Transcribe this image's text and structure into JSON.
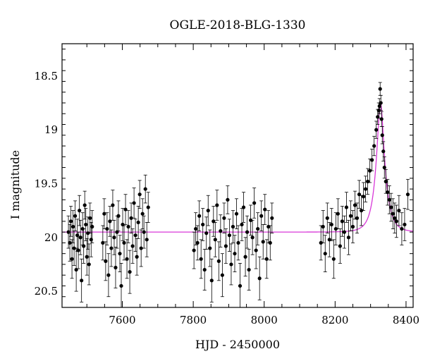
{
  "chart_data": {
    "type": "scatter",
    "title": "OGLE-2018-BLG-1330",
    "xlabel": "HJD - 2450000",
    "ylabel": "I magnitude",
    "xlim": [
      7430,
      8420
    ],
    "ylim": [
      20.65,
      18.2
    ],
    "y_inverted": true,
    "x_ticks": [
      7600,
      7800,
      8000,
      8200,
      8400
    ],
    "y_ticks": [
      18.5,
      19,
      19.5,
      20,
      20.5
    ],
    "x_tick_labels": [
      "7600",
      "7800",
      "8000",
      "8200",
      "8400"
    ],
    "y_tick_labels": [
      "18.5",
      "19",
      "19.5",
      "20",
      "20.5"
    ],
    "grid": false,
    "series": [
      {
        "kind": "points_with_errorbars",
        "color": "#000000",
        "points": [
          [
            7448,
            19.95,
            0.15
          ],
          [
            7452,
            20.05,
            0.17
          ],
          [
            7455,
            19.85,
            0.14
          ],
          [
            7458,
            20.2,
            0.18
          ],
          [
            7461,
            19.9,
            0.15
          ],
          [
            7464,
            20.1,
            0.16
          ],
          [
            7467,
            19.8,
            0.14
          ],
          [
            7470,
            20.3,
            0.2
          ],
          [
            7473,
            19.98,
            0.15
          ],
          [
            7476,
            20.12,
            0.17
          ],
          [
            7479,
            19.75,
            0.14
          ],
          [
            7482,
            20.0,
            0.16
          ],
          [
            7485,
            20.4,
            0.2
          ],
          [
            7488,
            19.92,
            0.15
          ],
          [
            7491,
            20.08,
            0.16
          ],
          [
            7494,
            19.7,
            0.13
          ],
          [
            7497,
            19.88,
            0.15
          ],
          [
            7500,
            20.18,
            0.17
          ],
          [
            7503,
            19.96,
            0.15
          ],
          [
            7506,
            20.25,
            0.19
          ],
          [
            7509,
            19.82,
            0.14
          ],
          [
            7512,
            20.02,
            0.16
          ],
          [
            7515,
            19.9,
            0.15
          ],
          [
            7545,
            20.05,
            0.16
          ],
          [
            7549,
            19.78,
            0.14
          ],
          [
            7553,
            20.22,
            0.18
          ],
          [
            7557,
            19.92,
            0.15
          ],
          [
            7561,
            20.35,
            0.2
          ],
          [
            7565,
            19.85,
            0.14
          ],
          [
            7569,
            20.1,
            0.17
          ],
          [
            7573,
            19.7,
            0.14
          ],
          [
            7577,
            20.0,
            0.16
          ],
          [
            7581,
            20.28,
            0.19
          ],
          [
            7585,
            19.95,
            0.15
          ],
          [
            7589,
            19.8,
            0.14
          ],
          [
            7593,
            20.15,
            0.17
          ],
          [
            7597,
            20.45,
            0.21
          ],
          [
            7601,
            19.88,
            0.15
          ],
          [
            7605,
            20.05,
            0.16
          ],
          [
            7609,
            19.74,
            0.14
          ],
          [
            7613,
            20.2,
            0.18
          ],
          [
            7617,
            19.9,
            0.15
          ],
          [
            7621,
            20.32,
            0.2
          ],
          [
            7625,
            19.82,
            0.14
          ],
          [
            7629,
            20.08,
            0.16
          ],
          [
            7633,
            19.68,
            0.14
          ],
          [
            7637,
            19.98,
            0.15
          ],
          [
            7641,
            20.18,
            0.17
          ],
          [
            7645,
            19.86,
            0.15
          ],
          [
            7649,
            19.6,
            0.13
          ],
          [
            7653,
            20.1,
            0.17
          ],
          [
            7657,
            19.78,
            0.14
          ],
          [
            7661,
            19.95,
            0.15
          ],
          [
            7665,
            19.55,
            0.13
          ],
          [
            7669,
            20.02,
            0.16
          ],
          [
            7673,
            19.72,
            0.14
          ],
          [
            7802,
            20.12,
            0.17
          ],
          [
            7807,
            19.92,
            0.15
          ],
          [
            7812,
            20.05,
            0.16
          ],
          [
            7817,
            19.8,
            0.14
          ],
          [
            7822,
            20.2,
            0.18
          ],
          [
            7827,
            19.88,
            0.15
          ],
          [
            7832,
            20.3,
            0.19
          ],
          [
            7837,
            19.96,
            0.15
          ],
          [
            7842,
            19.75,
            0.14
          ],
          [
            7847,
            20.1,
            0.17
          ],
          [
            7852,
            20.4,
            0.2
          ],
          [
            7857,
            19.85,
            0.14
          ],
          [
            7862,
            20.02,
            0.16
          ],
          [
            7867,
            19.7,
            0.14
          ],
          [
            7872,
            20.22,
            0.18
          ],
          [
            7877,
            19.94,
            0.15
          ],
          [
            7882,
            20.35,
            0.2
          ],
          [
            7887,
            19.82,
            0.14
          ],
          [
            7892,
            20.08,
            0.16
          ],
          [
            7897,
            19.65,
            0.13
          ],
          [
            7902,
            19.98,
            0.15
          ],
          [
            7907,
            20.25,
            0.19
          ],
          [
            7912,
            19.9,
            0.15
          ],
          [
            7917,
            20.15,
            0.17
          ],
          [
            7922,
            19.78,
            0.14
          ],
          [
            7927,
            20.05,
            0.16
          ],
          [
            7932,
            20.45,
            0.21
          ],
          [
            7937,
            19.88,
            0.15
          ],
          [
            7942,
            19.72,
            0.14
          ],
          [
            7947,
            20.18,
            0.18
          ],
          [
            7952,
            19.95,
            0.15
          ],
          [
            7957,
            20.3,
            0.19
          ],
          [
            7962,
            19.84,
            0.14
          ],
          [
            7967,
            20.0,
            0.16
          ],
          [
            7972,
            19.68,
            0.14
          ],
          [
            7977,
            20.12,
            0.17
          ],
          [
            7982,
            19.92,
            0.15
          ],
          [
            7987,
            20.38,
            0.2
          ],
          [
            7992,
            19.8,
            0.14
          ],
          [
            7997,
            20.04,
            0.16
          ],
          [
            8002,
            19.74,
            0.14
          ],
          [
            8007,
            20.2,
            0.18
          ],
          [
            8012,
            19.9,
            0.15
          ],
          [
            8017,
            20.05,
            0.16
          ],
          [
            8022,
            19.82,
            0.14
          ],
          [
            8160,
            20.05,
            0.16
          ],
          [
            8166,
            19.9,
            0.15
          ],
          [
            8172,
            20.15,
            0.17
          ],
          [
            8178,
            19.82,
            0.14
          ],
          [
            8184,
            20.02,
            0.16
          ],
          [
            8190,
            19.88,
            0.15
          ],
          [
            8196,
            20.2,
            0.18
          ],
          [
            8202,
            19.92,
            0.15
          ],
          [
            8208,
            19.78,
            0.14
          ],
          [
            8214,
            20.08,
            0.16
          ],
          [
            8220,
            19.85,
            0.14
          ],
          [
            8226,
            19.95,
            0.15
          ],
          [
            8232,
            19.72,
            0.14
          ],
          [
            8238,
            20.0,
            0.16
          ],
          [
            8244,
            19.8,
            0.14
          ],
          [
            8250,
            19.9,
            0.15
          ],
          [
            8256,
            19.7,
            0.13
          ],
          [
            8262,
            19.82,
            0.14
          ],
          [
            8268,
            19.6,
            0.13
          ],
          [
            8274,
            19.75,
            0.14
          ],
          [
            8280,
            19.62,
            0.13
          ],
          [
            8286,
            19.55,
            0.12
          ],
          [
            8292,
            19.48,
            0.12
          ],
          [
            8298,
            19.38,
            0.11
          ],
          [
            8304,
            19.28,
            0.1
          ],
          [
            8310,
            19.15,
            0.09
          ],
          [
            8316,
            19.0,
            0.08
          ],
          [
            8320,
            18.88,
            0.07
          ],
          [
            8323,
            18.82,
            0.07
          ],
          [
            8325,
            18.78,
            0.07
          ],
          [
            8327,
            18.62,
            0.06
          ],
          [
            8329,
            18.75,
            0.07
          ],
          [
            8331,
            18.9,
            0.07
          ],
          [
            8333,
            19.05,
            0.08
          ],
          [
            8336,
            19.2,
            0.09
          ],
          [
            8339,
            19.35,
            0.1
          ],
          [
            8343,
            19.48,
            0.11
          ],
          [
            8348,
            19.58,
            0.12
          ],
          [
            8353,
            19.65,
            0.13
          ],
          [
            8358,
            19.72,
            0.13
          ],
          [
            8363,
            19.78,
            0.14
          ],
          [
            8368,
            19.82,
            0.14
          ],
          [
            8373,
            19.85,
            0.15
          ],
          [
            8380,
            19.75,
            0.14
          ],
          [
            8388,
            19.92,
            0.15
          ],
          [
            8396,
            19.88,
            0.15
          ],
          [
            8405,
            19.6,
            0.14
          ]
        ]
      },
      {
        "kind": "model_curve",
        "color": "#d838d8",
        "baseline": 19.95,
        "peak_time": 8328,
        "peak_magnitude": 18.75,
        "timescale": 25
      }
    ]
  }
}
